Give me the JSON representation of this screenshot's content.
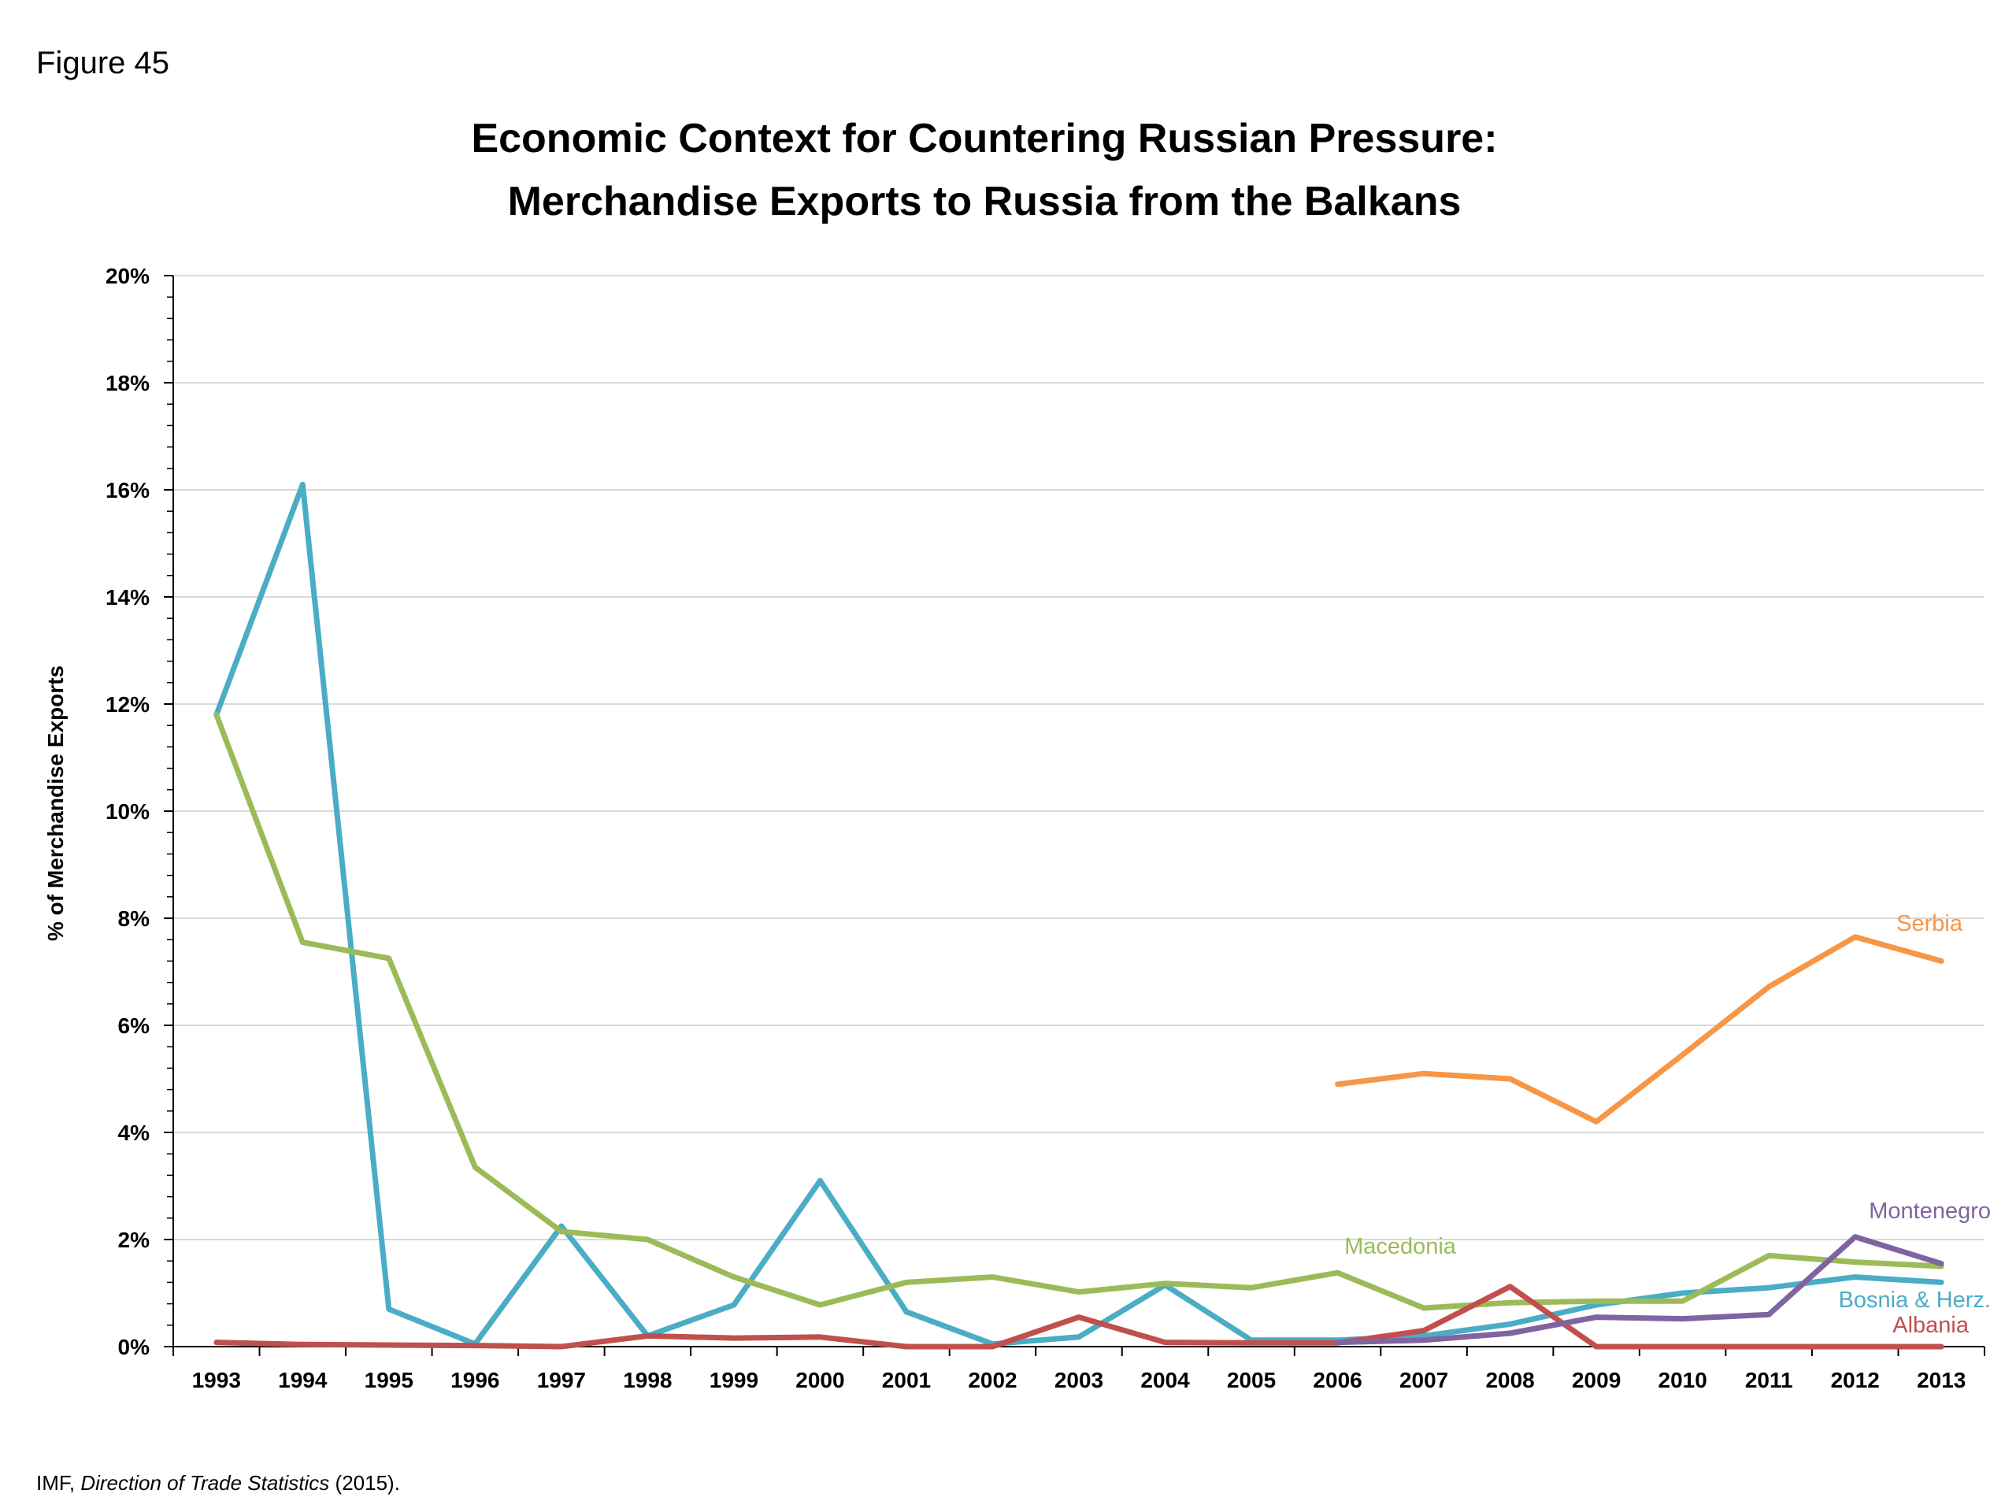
{
  "figure_label": "Figure 45",
  "chart_data": {
    "type": "line",
    "title_lines": [
      "Economic Context for Countering Russian Pressure:",
      "Merchandise Exports to Russia from the Balkans"
    ],
    "xlabel": "",
    "ylabel": "% of Merchandise Exports",
    "ylim": [
      0,
      20
    ],
    "y_ticks": [
      "0%",
      "2%",
      "4%",
      "6%",
      "8%",
      "10%",
      "12%",
      "14%",
      "16%",
      "18%",
      "20%"
    ],
    "grid": true,
    "x": [
      "1993",
      "1994",
      "1995",
      "1996",
      "1997",
      "1998",
      "1999",
      "2000",
      "2001",
      "2002",
      "2003",
      "2004",
      "2005",
      "2006",
      "2007",
      "2008",
      "2009",
      "2010",
      "2011",
      "2012",
      "2013"
    ],
    "series": [
      {
        "name": "Bosnia & Herz.",
        "color": "#4bacc6",
        "values": [
          11.8,
          16.1,
          0.7,
          0.05,
          2.25,
          0.2,
          0.78,
          3.1,
          0.65,
          0.05,
          0.18,
          1.15,
          0.12,
          0.12,
          0.2,
          0.42,
          0.78,
          1.0,
          1.1,
          1.3,
          1.2
        ]
      },
      {
        "name": "Macedonia",
        "color": "#9bbb59",
        "values": [
          11.8,
          7.55,
          7.25,
          3.35,
          2.15,
          2.0,
          1.3,
          0.78,
          1.2,
          1.3,
          1.02,
          1.18,
          1.1,
          1.38,
          0.72,
          0.82,
          0.85,
          0.85,
          1.7,
          1.58,
          1.5
        ]
      },
      {
        "name": "Albania",
        "color": "#c0504d",
        "values": [
          0.08,
          0.04,
          0.03,
          0.02,
          0.0,
          0.2,
          0.16,
          0.18,
          0.0,
          0.0,
          0.55,
          0.08,
          0.07,
          0.07,
          0.3,
          1.12,
          0.0,
          0.0,
          0.0,
          0.0,
          0.0
        ]
      },
      {
        "name": "Serbia",
        "color": "#f79646",
        "values": [
          null,
          null,
          null,
          null,
          null,
          null,
          null,
          null,
          null,
          null,
          null,
          null,
          null,
          4.9,
          5.1,
          5.0,
          4.2,
          5.45,
          6.72,
          7.65,
          7.2
        ]
      },
      {
        "name": "Montenegro",
        "color": "#8064a2",
        "values": [
          null,
          null,
          null,
          null,
          null,
          null,
          null,
          null,
          null,
          null,
          null,
          null,
          null,
          0.08,
          0.12,
          0.25,
          0.55,
          0.52,
          0.6,
          2.05,
          1.55
        ]
      }
    ],
    "series_label_order": [
      "Bosnia & Herz.",
      "Macedonia",
      "Albania",
      "Serbia",
      "Montenegro"
    ]
  },
  "source": {
    "prefix": "IMF, ",
    "title": "Direction of Trade Statistics",
    "suffix": " (2015)."
  }
}
